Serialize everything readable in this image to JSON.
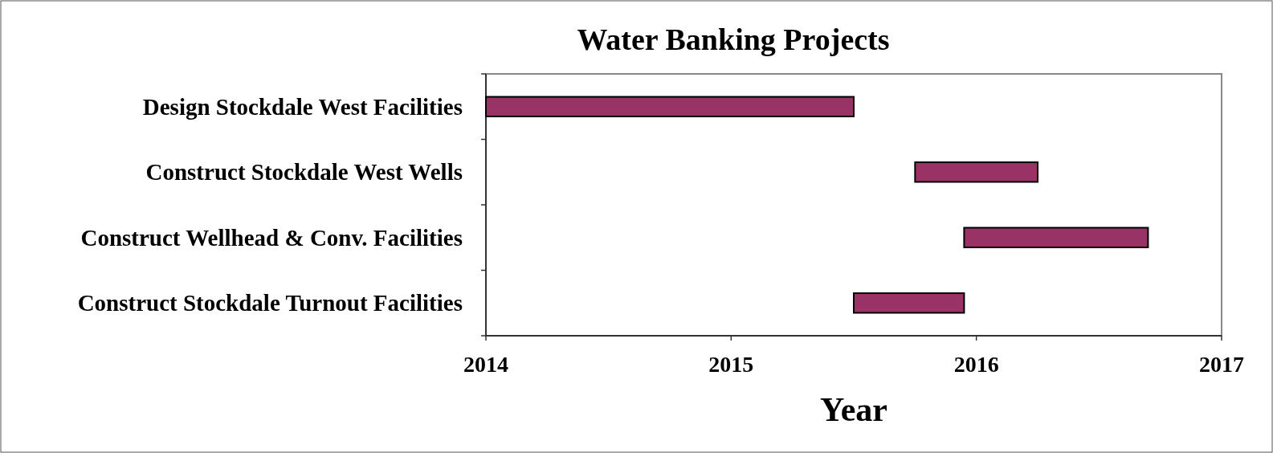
{
  "chart_data": {
    "type": "bar",
    "orientation": "horizontal",
    "title": "Water Banking Projects",
    "xlabel": "Year",
    "categories": [
      "Design Stockdale West Facilities",
      "Construct Stockdale West Wells",
      "Construct Wellhead & Conv. Facilities",
      "Construct Stockdale Turnout Facilities"
    ],
    "base": [
      2014,
      2015.75,
      2015.95,
      2015.5
    ],
    "values": [
      1.5,
      0.5,
      0.75,
      0.45
    ],
    "color": "#993366",
    "xlim": [
      2014,
      2017
    ],
    "xticks": [
      2014,
      2015,
      2016,
      2017
    ],
    "grid": false
  }
}
